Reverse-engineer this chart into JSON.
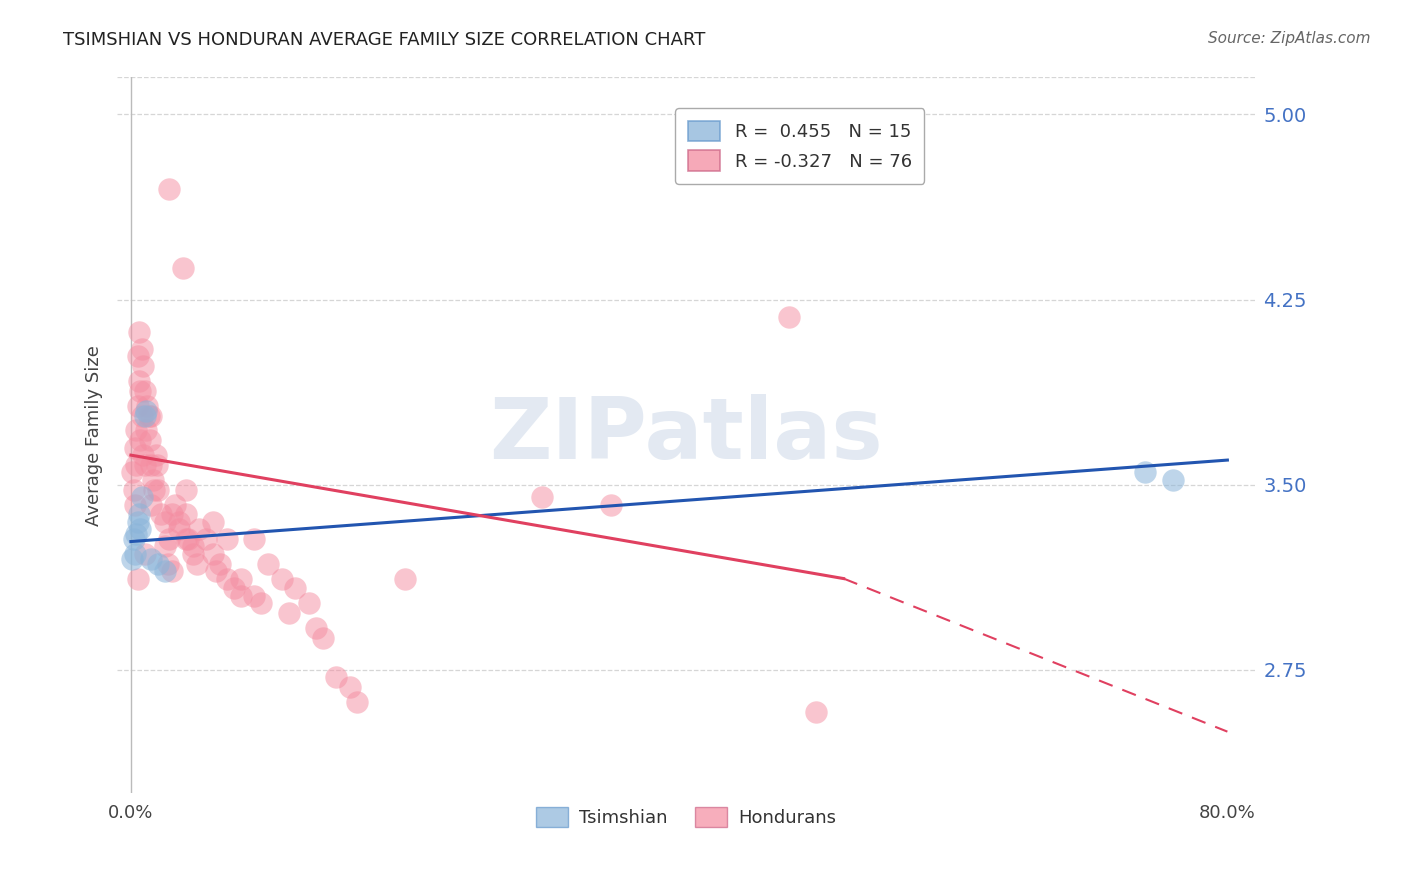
{
  "title": "TSIMSHIAN VS HONDURAN AVERAGE FAMILY SIZE CORRELATION CHART",
  "source": "Source: ZipAtlas.com",
  "ylabel": "Average Family Size",
  "right_yticks": [
    5.0,
    4.25,
    3.5,
    2.75
  ],
  "right_ytick_labels": [
    "5.00",
    "4.25",
    "3.50",
    "2.75"
  ],
  "legend_label_tsimshian": "Tsimshian",
  "legend_label_hondurans": "Hondurans",
  "tsimshian_color": "#8ab4d9",
  "honduran_color": "#f48ca0",
  "tsimshian_line_color": "#2255b0",
  "honduran_line_color": "#e04060",
  "background_color": "#ffffff",
  "grid_color": "#cccccc",
  "watermark": "ZIPatlas",
  "tsimshian_points": [
    [
      0.001,
      3.2
    ],
    [
      0.002,
      3.28
    ],
    [
      0.003,
      3.22
    ],
    [
      0.004,
      3.3
    ],
    [
      0.005,
      3.35
    ],
    [
      0.006,
      3.38
    ],
    [
      0.007,
      3.32
    ],
    [
      0.008,
      3.45
    ],
    [
      0.01,
      3.78
    ],
    [
      0.011,
      3.8
    ],
    [
      0.015,
      3.2
    ],
    [
      0.02,
      3.18
    ],
    [
      0.025,
      3.15
    ],
    [
      0.74,
      3.55
    ],
    [
      0.76,
      3.52
    ]
  ],
  "honduran_points": [
    [
      0.001,
      3.55
    ],
    [
      0.002,
      3.48
    ],
    [
      0.003,
      3.42
    ],
    [
      0.003,
      3.65
    ],
    [
      0.004,
      3.58
    ],
    [
      0.004,
      3.72
    ],
    [
      0.005,
      3.82
    ],
    [
      0.005,
      4.02
    ],
    [
      0.006,
      3.92
    ],
    [
      0.006,
      4.12
    ],
    [
      0.007,
      3.88
    ],
    [
      0.007,
      3.68
    ],
    [
      0.008,
      3.78
    ],
    [
      0.008,
      4.05
    ],
    [
      0.009,
      3.62
    ],
    [
      0.009,
      3.98
    ],
    [
      0.01,
      3.88
    ],
    [
      0.01,
      3.58
    ],
    [
      0.011,
      3.72
    ],
    [
      0.012,
      3.82
    ],
    [
      0.013,
      3.78
    ],
    [
      0.014,
      3.68
    ],
    [
      0.015,
      3.58
    ],
    [
      0.015,
      3.42
    ],
    [
      0.016,
      3.52
    ],
    [
      0.017,
      3.48
    ],
    [
      0.018,
      3.62
    ],
    [
      0.019,
      3.58
    ],
    [
      0.02,
      3.48
    ],
    [
      0.022,
      3.38
    ],
    [
      0.025,
      3.35
    ],
    [
      0.025,
      3.25
    ],
    [
      0.027,
      3.18
    ],
    [
      0.028,
      3.28
    ],
    [
      0.03,
      3.38
    ],
    [
      0.03,
      3.15
    ],
    [
      0.032,
      3.42
    ],
    [
      0.035,
      3.35
    ],
    [
      0.04,
      3.48
    ],
    [
      0.04,
      3.38
    ],
    [
      0.042,
      3.28
    ],
    [
      0.045,
      3.25
    ],
    [
      0.048,
      3.18
    ],
    [
      0.05,
      3.32
    ],
    [
      0.055,
      3.28
    ],
    [
      0.06,
      3.22
    ],
    [
      0.062,
      3.15
    ],
    [
      0.065,
      3.18
    ],
    [
      0.07,
      3.12
    ],
    [
      0.075,
      3.08
    ],
    [
      0.08,
      3.05
    ],
    [
      0.09,
      3.28
    ],
    [
      0.095,
      3.02
    ],
    [
      0.1,
      3.18
    ],
    [
      0.11,
      3.12
    ],
    [
      0.115,
      2.98
    ],
    [
      0.12,
      3.08
    ],
    [
      0.13,
      3.02
    ],
    [
      0.135,
      2.92
    ],
    [
      0.14,
      2.88
    ],
    [
      0.15,
      2.72
    ],
    [
      0.16,
      2.68
    ],
    [
      0.165,
      2.62
    ],
    [
      0.2,
      3.12
    ],
    [
      0.3,
      3.45
    ],
    [
      0.35,
      3.42
    ],
    [
      0.48,
      4.18
    ],
    [
      0.5,
      2.58
    ],
    [
      0.028,
      4.7
    ],
    [
      0.038,
      4.38
    ],
    [
      0.035,
      3.32
    ],
    [
      0.04,
      3.28
    ],
    [
      0.045,
      3.22
    ],
    [
      0.06,
      3.35
    ],
    [
      0.07,
      3.28
    ],
    [
      0.08,
      3.12
    ],
    [
      0.09,
      3.05
    ],
    [
      0.005,
      3.12
    ],
    [
      0.01,
      3.22
    ],
    [
      0.015,
      3.78
    ]
  ],
  "xlim": [
    -0.01,
    0.82
  ],
  "ylim": [
    2.25,
    5.15
  ],
  "ts_line": {
    "x0": 0.0,
    "x1": 0.8,
    "y0": 3.27,
    "y1": 3.6
  },
  "hn_line": {
    "x0": 0.0,
    "x1": 0.52,
    "y0": 3.62,
    "y1": 3.12,
    "dash_x0": 0.52,
    "dash_x1": 0.8,
    "dash_y0": 3.12,
    "dash_y1": 2.5
  },
  "figsize": [
    14.06,
    8.92
  ],
  "dpi": 100
}
